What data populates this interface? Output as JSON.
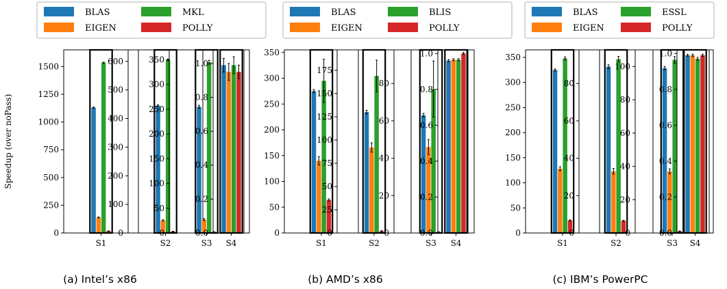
{
  "colors": {
    "BLAS": "#1f77b4",
    "EIGEN": "#ff7f0e",
    "MKL": "#2ca02c",
    "BLIS": "#2ca02c",
    "ESSL": "#2ca02c",
    "POLLY": "#d62728"
  },
  "ylabel": "Speedup (over noPass)",
  "chart_data": [
    {
      "type": "bar",
      "caption": "(a) Intel’s x86",
      "legend": [
        "BLAS",
        "MKL",
        "EIGEN",
        "POLLY"
      ],
      "series_order": [
        "BLAS",
        "EIGEN",
        "MKL",
        "POLLY"
      ],
      "panels": [
        {
          "category": "S1",
          "ylim": [
            0,
            1650
          ],
          "yticks": [
            0,
            250,
            500,
            750,
            1000,
            1250,
            1500
          ],
          "values": [
            1130,
            140,
            1535,
            17
          ],
          "errors": [
            5,
            4,
            5,
            2
          ]
        },
        {
          "category": "S2",
          "ylim": [
            0,
            640
          ],
          "yticks": [
            0,
            100,
            200,
            300,
            400,
            500,
            600
          ],
          "values": [
            445,
            44,
            605,
            5
          ],
          "errors": [
            3,
            2,
            3,
            1
          ]
        },
        {
          "category": "S3",
          "ylim": [
            0,
            370
          ],
          "yticks": [
            0,
            50,
            100,
            150,
            200,
            250,
            300,
            350
          ],
          "values": [
            255,
            27,
            345,
            2
          ],
          "errors": [
            3,
            2,
            4,
            0.5
          ]
        },
        {
          "category": "S4",
          "ylim": [
            0,
            1.08
          ],
          "yticks": [
            0.0,
            0.2,
            0.4,
            0.6,
            0.8,
            1.0
          ],
          "decimals": 1,
          "values": [
            0.99,
            0.95,
            0.99,
            0.95
          ],
          "errors": [
            0.04,
            0.05,
            0.05,
            0.04
          ]
        }
      ]
    },
    {
      "type": "bar",
      "caption": "(b) AMD’s x86",
      "legend": [
        "BLAS",
        "BLIS",
        "EIGEN",
        "POLLY"
      ],
      "series_order": [
        "BLAS",
        "EIGEN",
        "BLIS",
        "POLLY"
      ],
      "panels": [
        {
          "category": "S1",
          "ylim": [
            0,
            355
          ],
          "yticks": [
            0,
            50,
            100,
            150,
            200,
            250,
            300,
            350
          ],
          "values": [
            275,
            140,
            295,
            64
          ],
          "errors": [
            3,
            8,
            42,
            2
          ]
        },
        {
          "category": "S2",
          "ylim": [
            0,
            197
          ],
          "yticks": [
            0,
            25,
            50,
            75,
            100,
            125,
            150,
            175
          ],
          "values": [
            130,
            92,
            169,
            2
          ],
          "errors": [
            2,
            5,
            17,
            0.5
          ]
        },
        {
          "category": "S3",
          "ylim": [
            0,
            98
          ],
          "yticks": [
            0,
            20,
            40,
            60,
            80
          ],
          "values": [
            63,
            46,
            77,
            0.5
          ],
          "errors": [
            1,
            4,
            15,
            0.2
          ]
        },
        {
          "category": "S4",
          "ylim": [
            0,
            1.02
          ],
          "yticks": [
            0.0,
            0.2,
            0.4,
            0.6,
            0.8,
            1.0
          ],
          "decimals": 1,
          "values": [
            0.96,
            0.965,
            0.965,
            1.0
          ],
          "errors": [
            0.006,
            0.006,
            0.006,
            0.006
          ]
        }
      ]
    },
    {
      "type": "bar",
      "caption": "(c) IBM’s PowerPC",
      "legend": [
        "BLAS",
        "ESSL",
        "EIGEN",
        "POLLY"
      ],
      "series_order": [
        "BLAS",
        "EIGEN",
        "ESSL",
        "POLLY"
      ],
      "panels": [
        {
          "category": "S1",
          "ylim": [
            0,
            365
          ],
          "yticks": [
            0,
            50,
            100,
            150,
            200,
            250,
            300,
            350
          ],
          "values": [
            325,
            128,
            348,
            25
          ],
          "errors": [
            2,
            4,
            3,
            1
          ]
        },
        {
          "category": "S2",
          "ylim": [
            0,
            98
          ],
          "yticks": [
            0,
            20,
            40,
            60,
            80
          ],
          "values": [
            89,
            33,
            93,
            6.5
          ],
          "errors": [
            1,
            1.5,
            1.5,
            0.3
          ]
        },
        {
          "category": "S3",
          "ylim": [
            0,
            110
          ],
          "yticks": [
            0,
            20,
            40,
            60,
            80,
            100
          ],
          "values": [
            99,
            37,
            104,
            1
          ],
          "errors": [
            1,
            1.5,
            2,
            0.2
          ]
        },
        {
          "category": "S4",
          "ylim": [
            0,
            1.02
          ],
          "yticks": [
            0.0,
            0.2,
            0.4,
            0.6,
            0.8,
            1.0
          ],
          "decimals": 1,
          "values": [
            0.99,
            0.99,
            0.97,
            0.99
          ],
          "errors": [
            0.005,
            0.006,
            0.008,
            0.006
          ]
        }
      ]
    }
  ]
}
